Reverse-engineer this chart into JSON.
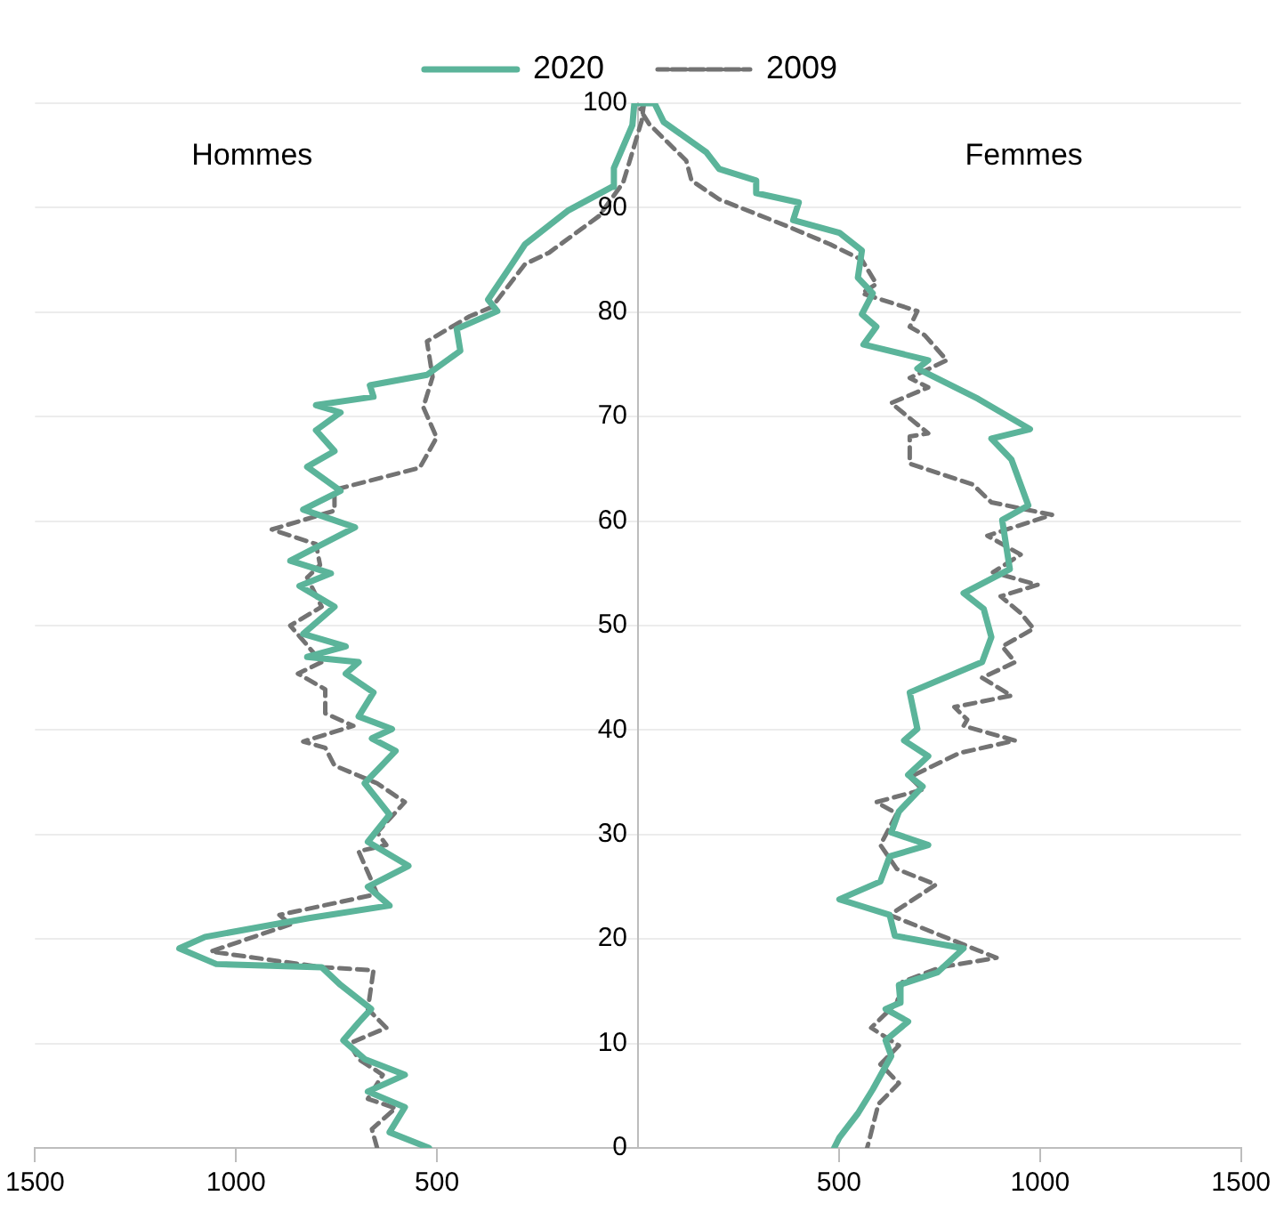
{
  "chart_data": {
    "type": "line",
    "annotations": [
      "Hommes",
      "Femmes"
    ],
    "legend": "top",
    "grid": "y",
    "xlim": [
      -1500,
      1500
    ],
    "ylim": [
      0,
      100
    ],
    "xticks": [
      {
        "value": -1500,
        "label": "1500"
      },
      {
        "value": -1000,
        "label": "1000"
      },
      {
        "value": -500,
        "label": "500"
      },
      500,
      1000,
      1500
    ],
    "yticks": [
      0,
      10,
      20,
      30,
      40,
      50,
      60,
      70,
      80,
      90,
      100
    ],
    "series": [
      {
        "name": "2020",
        "color": "#5bb49a",
        "line_style": "solid",
        "x": [
          -520,
          -618,
          -580,
          -672,
          -580,
          -680,
          -733,
          -695,
          -664,
          -740,
          -787,
          -1049,
          -1141,
          -1077,
          -819,
          -618,
          -672,
          -571,
          -672,
          -618,
          -680,
          -603,
          -662,
          -612,
          -695,
          -658,
          -727,
          -695,
          -823,
          -727,
          -833,
          -755,
          -842,
          -764,
          -865,
          -704,
          -833,
          -740,
          -823,
          -755,
          -801,
          -740,
          -801,
          -658,
          -667,
          -525,
          -442,
          -451,
          -350,
          -373,
          -317,
          -281,
          -175,
          -64,
          -60,
          -14,
          -9,
          41,
          64,
          170,
          202,
          294,
          294,
          400,
          386,
          501,
          557,
          547,
          584,
          557,
          593,
          561,
          722,
          695,
          846,
          975,
          879,
          929,
          971,
          906,
          925,
          810,
          860,
          879,
          856,
          676,
          695,
          662,
          722,
          672,
          708,
          649,
          630,
          722,
          626,
          603,
          501,
          626,
          639,
          810,
          745,
          649,
          653,
          616,
          672,
          616,
          630,
          584,
          547,
          501,
          488
        ],
        "values": [
          0,
          1.5,
          3.9,
          5.4,
          7,
          8.5,
          10.3,
          12,
          13.3,
          15.6,
          17.3,
          17.6,
          19.1,
          20.2,
          22,
          23.2,
          25,
          27,
          29.3,
          31.9,
          34.9,
          38,
          39.2,
          40.1,
          41.3,
          43.6,
          45.4,
          46.5,
          47,
          48,
          49.2,
          51.8,
          53.8,
          55,
          56.2,
          59.4,
          61.1,
          62.9,
          65.2,
          66.7,
          68.7,
          70.4,
          71.1,
          71.9,
          73,
          74,
          76.3,
          78.4,
          80.1,
          81.2,
          84.4,
          86.5,
          89.7,
          92,
          93.8,
          97.9,
          100,
          100,
          98.2,
          95.3,
          93.7,
          92.6,
          91.4,
          90.5,
          88.8,
          87.6,
          85.9,
          83.3,
          81.8,
          79.8,
          78.6,
          76.9,
          75.4,
          74.6,
          71.7,
          68.8,
          67.9,
          65.9,
          61.5,
          60.1,
          55.4,
          53.1,
          51.6,
          48.9,
          46.5,
          43.6,
          40.1,
          39,
          37.5,
          35.7,
          34.6,
          32.2,
          30.2,
          29,
          27.9,
          25.5,
          23.8,
          22.3,
          20.3,
          19.1,
          16.8,
          15.6,
          13.9,
          13.3,
          12.1,
          10.3,
          8.8,
          5.6,
          3.3,
          1,
          0
        ]
      },
      {
        "name": "2009",
        "color": "#737373",
        "line_style": "dashed",
        "x": [
          -649,
          -662,
          -603,
          -672,
          -635,
          -695,
          -718,
          -626,
          -672,
          -658,
          -787,
          -1063,
          -865,
          -892,
          -649,
          -662,
          -695,
          -626,
          -649,
          -580,
          -649,
          -755,
          -778,
          -833,
          -708,
          -778,
          -778,
          -846,
          -787,
          -865,
          -787,
          -823,
          -791,
          -801,
          -911,
          -755,
          -755,
          -543,
          -501,
          -534,
          -511,
          -525,
          -419,
          -363,
          -281,
          -221,
          -97,
          -37,
          -18,
          9,
          14,
          5,
          28,
          120,
          133,
          202,
          373,
          478,
          557,
          593,
          557,
          695,
          676,
          713,
          768,
          676,
          722,
          630,
          722,
          676,
          676,
          833,
          879,
          1030,
          869,
          952,
          883,
          994,
          902,
          952,
          984,
          906,
          938,
          856,
          929,
          787,
          819,
          810,
          938,
          800,
          676,
          708,
          593,
          644,
          603,
          644,
          741,
          626,
          892,
          754,
          658,
          644,
          580,
          649,
          603,
          649,
          598,
          575,
          570
        ],
        "values": [
          0,
          1.8,
          3.8,
          4.7,
          7,
          8.5,
          10,
          11.5,
          13.3,
          17,
          17.3,
          18.8,
          21.4,
          22.3,
          24.3,
          25.5,
          28.4,
          29,
          30.2,
          33.1,
          34.9,
          36.6,
          38.3,
          38.9,
          40.4,
          41.6,
          43.9,
          45.4,
          46.5,
          50,
          51.8,
          54.6,
          55.8,
          57.8,
          59.2,
          61,
          63,
          65.1,
          68,
          70.9,
          73.8,
          77.2,
          79.6,
          80.5,
          84.6,
          85.7,
          89.2,
          92.4,
          94.8,
          98.3,
          99.7,
          99.4,
          98,
          94.5,
          92.6,
          90.8,
          88.2,
          86.5,
          85,
          82.7,
          81.8,
          80.1,
          78.6,
          77.8,
          75.4,
          73.7,
          72.8,
          71.3,
          68.4,
          68.1,
          65.5,
          63.5,
          61.8,
          60.6,
          58.6,
          56.8,
          55.1,
          53.9,
          52.8,
          51.2,
          49.7,
          48,
          46.5,
          45,
          43.3,
          42.2,
          41,
          40.4,
          39,
          37.8,
          35.5,
          34.3,
          33.1,
          32,
          29,
          26.7,
          25.2,
          22.3,
          18.2,
          17.3,
          15.9,
          13.9,
          11.5,
          9.8,
          8,
          6.2,
          4.2,
          0.7,
          0
        ]
      }
    ]
  }
}
